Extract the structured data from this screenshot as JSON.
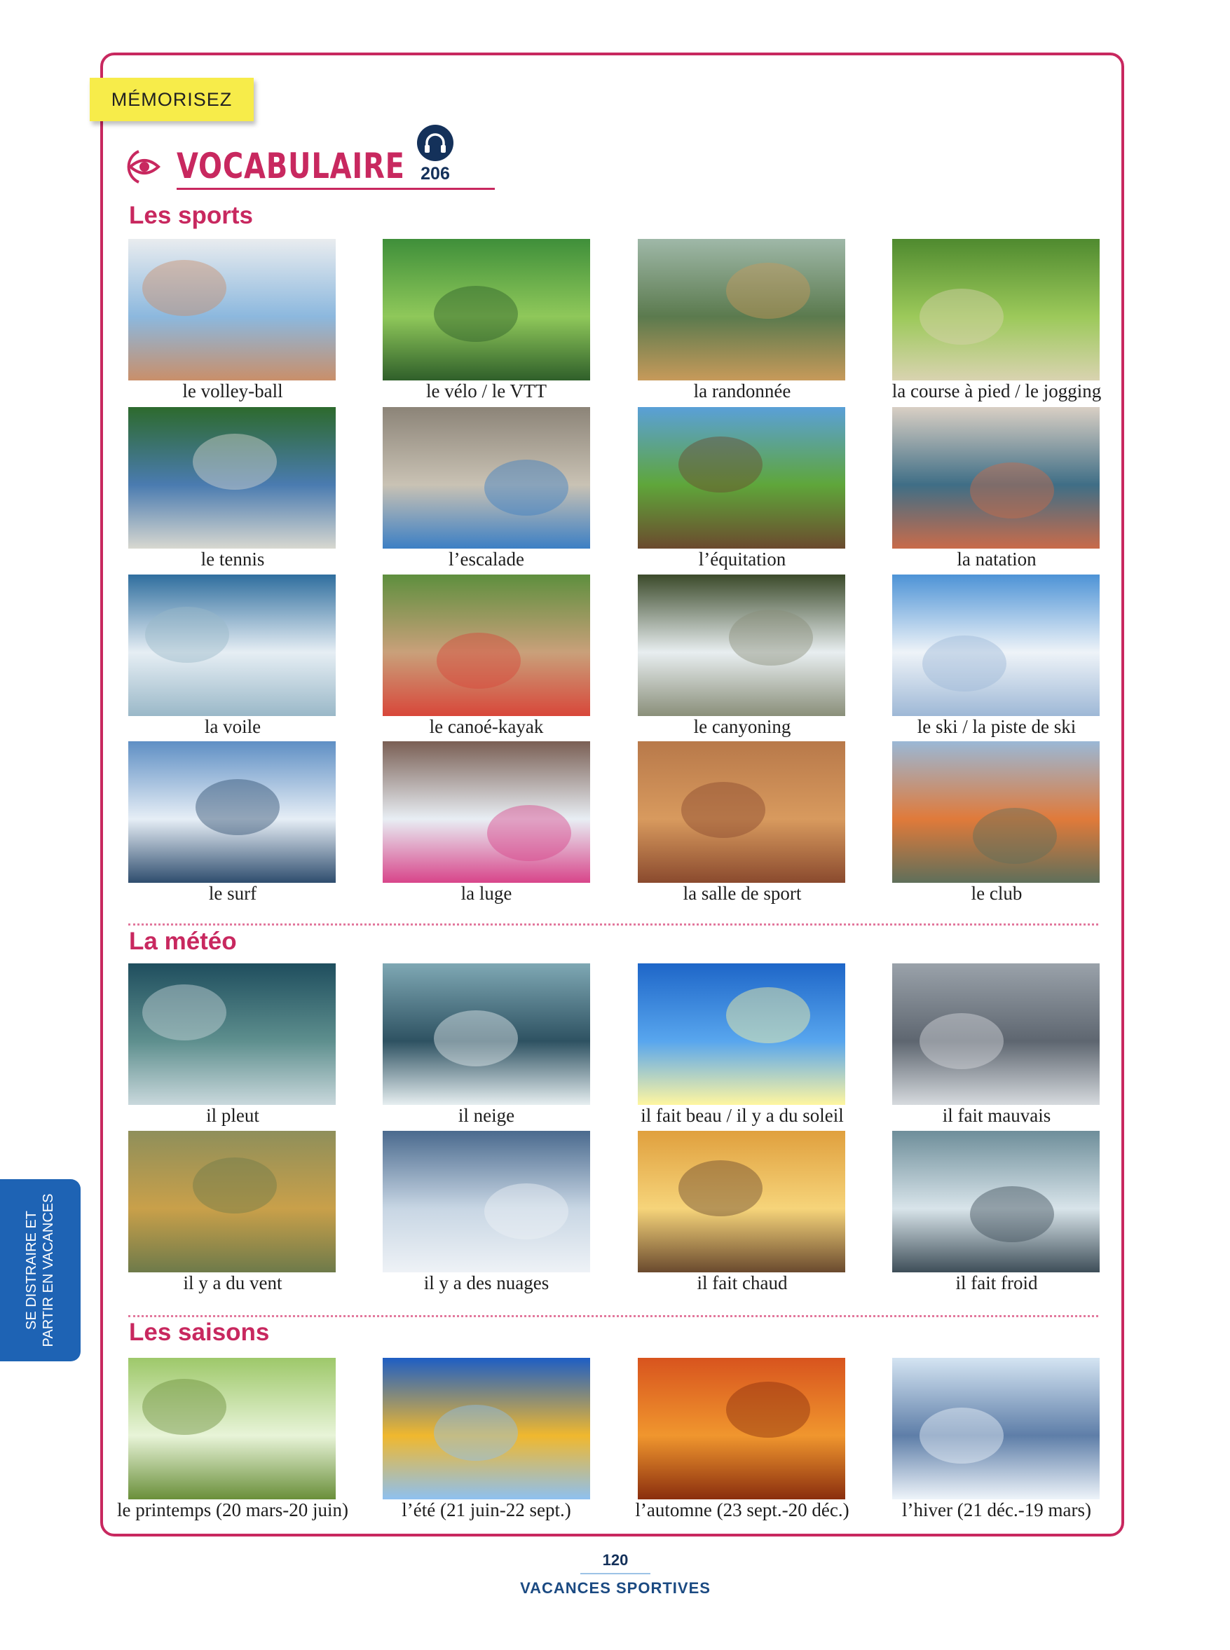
{
  "tag": "MÉMORISEZ",
  "title": "VOCABULAIRE",
  "audio": {
    "icon": "headphones-icon",
    "track": "206"
  },
  "side_tab": [
    "SE DISTRAIRE ET",
    "PARTIR EN VACANCES"
  ],
  "footer": {
    "page": "120",
    "chapter": "VACANCES SPORTIVES"
  },
  "colors": {
    "accent": "#c8285f",
    "tag": "#f7ec4a",
    "navy": "#14315a",
    "tab": "#1e63b4"
  },
  "sections": {
    "sports": {
      "title": "Les sports",
      "items": [
        "le volley-ball",
        "le vélo / le VTT",
        "la randonnée",
        "la course à pied / le jogging",
        "le tennis",
        "l’escalade",
        "l’équitation",
        "la natation",
        "la voile",
        "le canoé-kayak",
        "le canyoning",
        "le ski / la piste de ski",
        "le surf",
        "la luge",
        "la salle de sport",
        "le club"
      ]
    },
    "meteo": {
      "title": "La météo",
      "items": [
        "il pleut",
        "il neige",
        "il fait beau / il y a du soleil",
        "il fait mauvais",
        "il y a du vent",
        "il y a des nuages",
        "il fait chaud",
        "il fait froid"
      ]
    },
    "saisons": {
      "title": "Les saisons",
      "items": [
        "le printemps (20 mars-20 juin)",
        "l’été (21 juin-22 sept.)",
        "l’automne (23 sept.-20 déc.)",
        "l’hiver (21 déc.-19 mars)"
      ]
    }
  }
}
